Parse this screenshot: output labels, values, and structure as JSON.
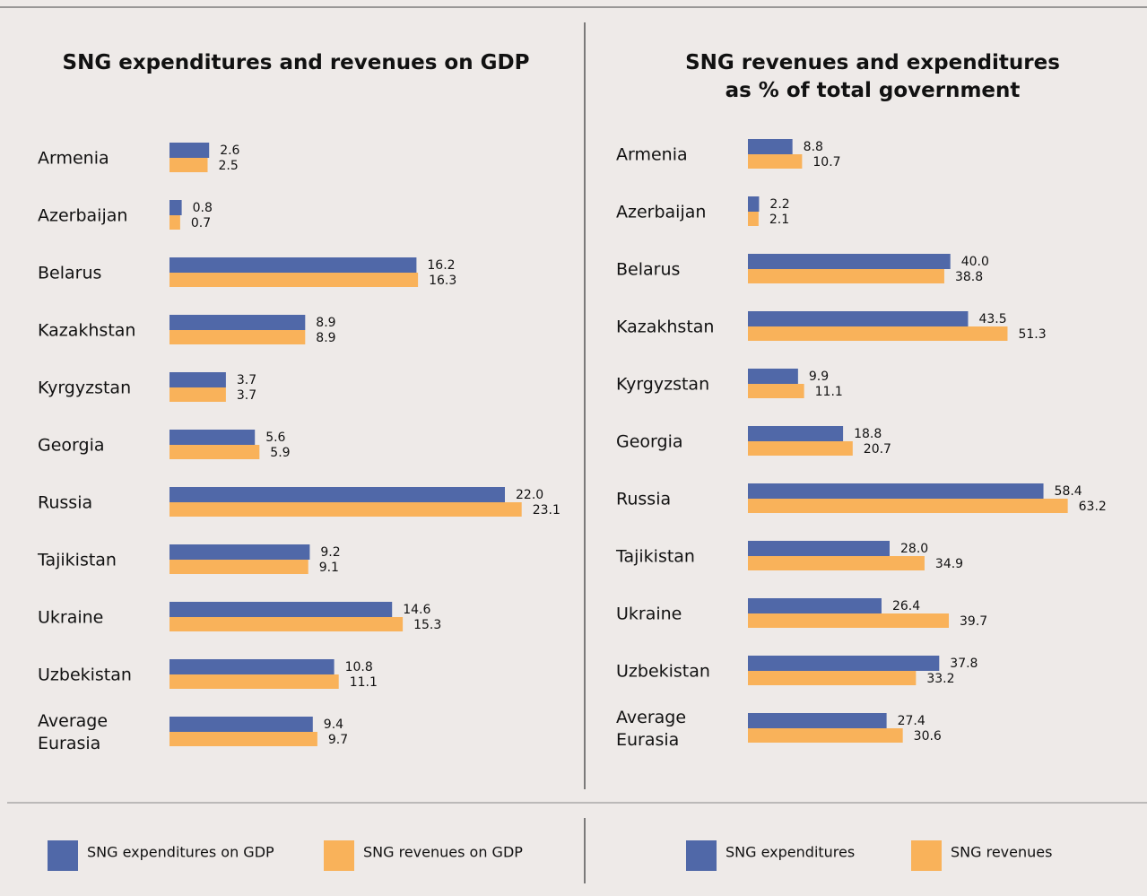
{
  "chart_data": [
    {
      "type": "bar",
      "orientation": "horizontal",
      "title": "SNG expenditures and revenues on GDP",
      "categories": [
        "Armenia",
        "Azerbaijan",
        "Belarus",
        "Kazakhstan",
        "Kyrgyzstan",
        "Georgia",
        "Russia",
        "Tajikistan",
        "Ukraine",
        "Uzbekistan",
        "Average Eurasia"
      ],
      "series": [
        {
          "name": "SNG expenditures on GDP",
          "color": "#5068a8",
          "values": [
            2.6,
            0.8,
            16.2,
            8.9,
            3.7,
            5.6,
            22.0,
            9.2,
            14.6,
            10.8,
            9.4
          ],
          "value_labels": [
            "2.6",
            "0.8",
            "16.2",
            "8.9",
            "3.7",
            "5.6",
            "22.0",
            "9.2",
            "14.6",
            "10.8",
            "9.4"
          ]
        },
        {
          "name": "SNG revenues on GDP",
          "color": "#f9b25a",
          "values": [
            2.5,
            0.7,
            16.3,
            8.9,
            3.7,
            5.9,
            23.1,
            9.1,
            15.3,
            11.1,
            9.7
          ],
          "value_labels": [
            "2.5",
            "0.7",
            "16.3",
            "8.9",
            "3.7",
            "5.9",
            "23.1",
            "9.1",
            "15.3",
            "11.1",
            "9.7"
          ]
        }
      ],
      "xlim": [
        0,
        25
      ]
    },
    {
      "type": "bar",
      "orientation": "horizontal",
      "title": "SNG revenues and expenditures as % of total government",
      "categories": [
        "Armenia",
        "Azerbaijan",
        "Belarus",
        "Kazakhstan",
        "Kyrgyzstan",
        "Georgia",
        "Russia",
        "Tajikistan",
        "Ukraine",
        "Uzbekistan",
        "Average Eurasia"
      ],
      "series": [
        {
          "name": "SNG expenditures",
          "color": "#5068a8",
          "values": [
            8.8,
            2.2,
            40.0,
            43.5,
            9.9,
            18.8,
            58.4,
            28.0,
            26.4,
            37.8,
            27.4
          ],
          "value_labels": [
            "8.8",
            "2.2",
            "40.0",
            "43.5",
            "9.9",
            "18.8",
            "58.4",
            "28.0",
            "26.4",
            "37.8",
            "27.4"
          ]
        },
        {
          "name": "SNG revenues",
          "color": "#f9b25a",
          "values": [
            10.7,
            2.1,
            38.8,
            51.3,
            11.1,
            20.7,
            63.2,
            34.9,
            39.7,
            33.2,
            30.6
          ],
          "value_labels": [
            "10.7",
            "2.1",
            "38.8",
            "51.3",
            "11.1",
            "20.7",
            "63.2",
            "34.9",
            "39.7",
            "33.2",
            "30.6"
          ]
        }
      ],
      "xlim": [
        0,
        70
      ]
    }
  ]
}
